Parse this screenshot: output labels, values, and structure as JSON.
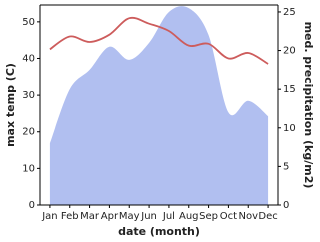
{
  "chart_data": {
    "type": "line_area",
    "x_label": "date (month)",
    "y_label": "max temp (C)",
    "y2_label": "med. precipitation (kg/m2)",
    "categories": [
      "Jan",
      "Feb",
      "Mar",
      "Apr",
      "May",
      "Jun",
      "Jul",
      "Aug",
      "Sep",
      "Oct",
      "Nov",
      "Dec"
    ],
    "series": [
      {
        "name": "max temp",
        "color": "#cd5c5c",
        "values": [
          42.5,
          46,
          44.5,
          46.5,
          51,
          49.5,
          47.5,
          43.5,
          44,
          40,
          41.5,
          38.5
        ]
      },
      {
        "name": "med. precipitation",
        "color": "#b1bff0",
        "axis": "y2",
        "values": [
          8,
          15,
          17.5,
          20.5,
          18.8,
          21,
          25,
          25.5,
          22,
          12,
          13.5,
          11.5
        ]
      }
    ],
    "ylim": [
      0,
      54.6
    ],
    "yticks": [
      0,
      10,
      20,
      30,
      40,
      50
    ],
    "y2lim": [
      0,
      25.9
    ],
    "y2ticks": [
      0,
      5,
      10,
      15,
      20,
      25
    ]
  }
}
